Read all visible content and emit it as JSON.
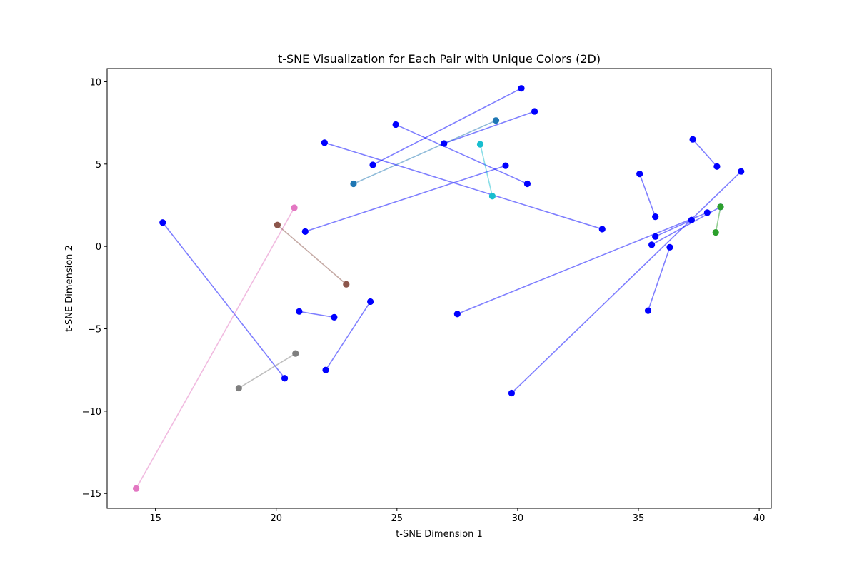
{
  "chart_data": {
    "type": "scatter",
    "title": "t-SNE Visualization for Each Pair with Unique Colors (2D)",
    "xlabel": "t-SNE Dimension 1",
    "ylabel": "t-SNE Dimension 2",
    "xlim": [
      13,
      40.5
    ],
    "ylim": [
      -15.9,
      10.8
    ],
    "xticks": [
      15,
      20,
      25,
      30,
      35,
      40
    ],
    "yticks": [
      10,
      5,
      0,
      -5,
      -10,
      -15
    ],
    "grid": false,
    "legend": "none",
    "pairs": [
      {
        "color": "#0000ff",
        "points": [
          [
            15.3,
            1.45
          ],
          [
            20.35,
            -8.0
          ]
        ]
      },
      {
        "color": "#e377c2",
        "points": [
          [
            20.75,
            2.35
          ],
          [
            14.2,
            -14.7
          ]
        ]
      },
      {
        "color": "#8c564b",
        "points": [
          [
            20.05,
            1.3
          ],
          [
            22.9,
            -2.3
          ]
        ]
      },
      {
        "color": "#7f7f7f",
        "points": [
          [
            18.45,
            -8.6
          ],
          [
            20.8,
            -6.5
          ]
        ]
      },
      {
        "color": "#0000ff",
        "points": [
          [
            20.95,
            -3.95
          ],
          [
            22.4,
            -4.3
          ]
        ]
      },
      {
        "color": "#0000ff",
        "points": [
          [
            22.05,
            -7.5
          ],
          [
            23.9,
            -3.35
          ]
        ]
      },
      {
        "color": "#1f77b4",
        "points": [
          [
            23.2,
            3.8
          ],
          [
            29.1,
            7.65
          ]
        ]
      },
      {
        "color": "#0000ff",
        "points": [
          [
            24.0,
            4.95
          ],
          [
            30.15,
            9.6
          ]
        ]
      },
      {
        "color": "#0000ff",
        "points": [
          [
            24.95,
            7.4
          ],
          [
            30.4,
            3.8
          ]
        ]
      },
      {
        "color": "#0000ff",
        "points": [
          [
            26.95,
            6.25
          ],
          [
            30.7,
            8.2
          ]
        ]
      },
      {
        "color": "#0000ff",
        "points": [
          [
            21.2,
            0.9
          ],
          [
            29.5,
            4.9
          ]
        ]
      },
      {
        "color": "#0000ff",
        "points": [
          [
            22.0,
            6.3
          ],
          [
            33.5,
            1.05
          ]
        ]
      },
      {
        "color": "#17becf",
        "points": [
          [
            28.45,
            6.2
          ],
          [
            28.95,
            3.05
          ]
        ]
      },
      {
        "color": "#0000ff",
        "points": [
          [
            27.5,
            -4.1
          ],
          [
            37.85,
            2.05
          ]
        ]
      },
      {
        "color": "#0000ff",
        "points": [
          [
            29.75,
            -8.9
          ],
          [
            39.25,
            4.55
          ]
        ]
      },
      {
        "color": "#0000ff",
        "points": [
          [
            35.05,
            4.4
          ],
          [
            35.7,
            1.8
          ]
        ]
      },
      {
        "color": "#0000ff",
        "points": [
          [
            37.25,
            6.5
          ],
          [
            38.25,
            4.85
          ]
        ]
      },
      {
        "color": "#0000ff",
        "points": [
          [
            35.7,
            0.6
          ],
          [
            37.2,
            1.6
          ]
        ]
      },
      {
        "color": "#0000ff",
        "points": [
          [
            35.55,
            0.1
          ],
          [
            38.4,
            2.4
          ]
        ]
      },
      {
        "color": "#0000ff",
        "points": [
          [
            35.4,
            -3.9
          ],
          [
            36.3,
            -0.05
          ]
        ]
      },
      {
        "color": "#2ca02c",
        "points": [
          [
            38.4,
            2.4
          ],
          [
            38.2,
            0.85
          ]
        ]
      }
    ]
  }
}
